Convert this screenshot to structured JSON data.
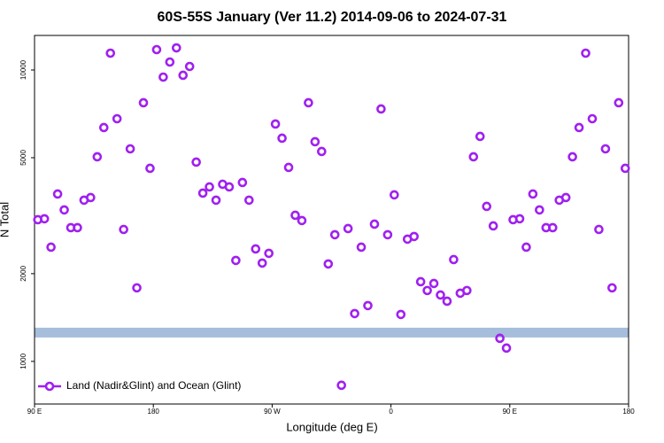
{
  "chart_data": {
    "type": "scatter",
    "title": "60S-55S January (Ver 11.2)   2014-09-06 to 2024-07-31",
    "x_label": "Longitude (deg E)",
    "y_label": "N Total",
    "ylog": true,
    "xlim": [
      90,
      540
    ],
    "ylim": [
      714,
      13140
    ],
    "xticks": [
      {
        "value": 90,
        "label": "90 E"
      },
      180,
      {
        "value": 270,
        "label": "90 W"
      },
      {
        "value": 360,
        "label": "0"
      },
      {
        "value": 450,
        "label": "90 E"
      },
      {
        "value": 540,
        "label": "180"
      }
    ],
    "yticks": [
      1000,
      2000,
      5000,
      10000
    ],
    "legend": "bottom-left",
    "reference_band": {
      "values": [
        1208,
        1305
      ],
      "color": "#a6bddb"
    },
    "series": [
      {
        "name": "Land (Nadir&Glint) and Ocean (Glint)",
        "color": "#a020f0",
        "x": [
          92.5,
          97.5,
          102.5,
          107.5,
          112.5,
          117.5,
          122.5,
          127.5,
          132.5,
          137.5,
          142.5,
          147.5,
          152.5,
          157.5,
          162.5,
          167.5,
          172.5,
          177.5,
          182.5,
          187.5,
          192.5,
          197.5,
          202.5,
          207.5,
          212.5,
          217.5,
          222.5,
          227.5,
          232.5,
          237.5,
          242.5,
          247.5,
          252.5,
          257.5,
          262.5,
          267.5,
          272.5,
          277.5,
          282.5,
          287.5,
          292.5,
          297.5,
          302.5,
          307.5,
          312.5,
          317.5,
          322.5,
          327.5,
          332.5,
          337.5,
          342.5,
          347.5,
          352.5,
          357.5,
          362.5,
          367.5,
          372.5,
          377.5,
          382.5,
          387.5,
          392.5,
          397.5,
          402.5,
          407.5,
          412.5,
          417.5,
          422.5,
          427.5,
          432.5,
          437.5,
          442.5,
          447.5,
          452.5,
          457.5,
          462.5,
          467.5,
          472.5,
          477.5,
          482.5,
          487.5,
          492.5,
          497.5,
          502.5,
          507.5,
          512.5,
          517.5,
          522.5,
          527.5,
          532.5,
          537.5
        ],
        "values": [
          3064,
          3086,
          2466,
          3754,
          3310,
          2877,
          2877,
          3575,
          3650,
          5036,
          6345,
          11424,
          6804,
          2837,
          5363,
          1788,
          7719,
          4598,
          11748,
          9456,
          10650,
          11912,
          9590,
          10285,
          4830,
          3780,
          3970,
          3575,
          4054,
          3970,
          2221,
          4111,
          3575,
          2432,
          2175,
          2349,
          6525,
          5834,
          4631,
          3173,
          3043,
          7719,
          5673,
          5253,
          2160,
          2721,
          828,
          2857,
          1459,
          2466,
          1554,
          2958,
          7350,
          2721,
          3728,
          1449,
          2627,
          2683,
          1877,
          1751,
          1851,
          1690,
          1609,
          2236,
          1714,
          1751,
          5036,
          5916,
          3403,
          2917,
          1200,
          1111,
          3064,
          3086,
          2466,
          3754,
          3310,
          2877,
          2877,
          3575,
          3650,
          5036,
          6345,
          11424,
          6804,
          2837,
          5363,
          1788,
          7719,
          4598
        ]
      }
    ]
  }
}
